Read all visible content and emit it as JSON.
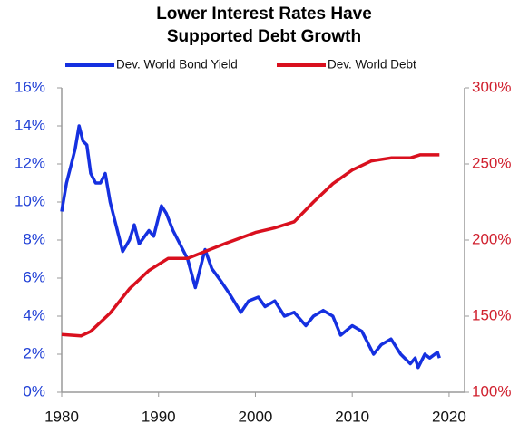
{
  "chart_data": {
    "type": "line",
    "title": [
      "Lower Interest Rates Have",
      "Supported  Debt Growth"
    ],
    "xlim": [
      1980,
      2021.6
    ],
    "xticks": [
      1980,
      1990,
      2000,
      2010,
      2020
    ],
    "ylim": [
      0,
      16
    ],
    "yticks": [
      {
        "value": 0,
        "label": "0%"
      },
      {
        "value": 2,
        "label": "2%"
      },
      {
        "value": 4,
        "label": "4%"
      },
      {
        "value": 6,
        "label": "6%"
      },
      {
        "value": 8,
        "label": "8%"
      },
      {
        "value": 10,
        "label": "10%"
      },
      {
        "value": 12,
        "label": "12%"
      },
      {
        "value": 14,
        "label": "14%"
      },
      {
        "value": 16,
        "label": "16%"
      }
    ],
    "y2lim": [
      100,
      300
    ],
    "y2ticks": [
      {
        "value": 100,
        "label": "100%"
      },
      {
        "value": 150,
        "label": "150%"
      },
      {
        "value": 200,
        "label": "200%"
      },
      {
        "value": 250,
        "label": "250%"
      },
      {
        "value": 300,
        "label": "300%"
      }
    ],
    "yaxis_color": "#1f3fd6",
    "y2axis_color": "#d0202e",
    "series": [
      {
        "name": "Dev. World Bond Yield",
        "color": "#1530e0",
        "axis": "y",
        "x": [
          1980,
          1980.5,
          1981,
          1981.4,
          1981.8,
          1982.2,
          1982.6,
          1983,
          1983.5,
          1984,
          1984.5,
          1985,
          1985.5,
          1986.3,
          1987,
          1987.5,
          1988,
          1989,
          1989.5,
          1990.3,
          1990.8,
          1991.5,
          1992,
          1993,
          1993.8,
          1994.3,
          1994.8,
          1995.5,
          1996.5,
          1997.3,
          1998.5,
          1999.3,
          2000.3,
          2001,
          2002,
          2003,
          2004,
          2005.2,
          2006,
          2007,
          2008,
          2008.8,
          2010,
          2011,
          2012.2,
          2013,
          2014,
          2015,
          2016,
          2016.5,
          2016.8,
          2017.5,
          2018,
          2018.8,
          2019
        ],
        "values": [
          9.5,
          11,
          12,
          12.8,
          14,
          13.2,
          13,
          11.5,
          11,
          11,
          11.5,
          10,
          9,
          7.4,
          8,
          8.8,
          7.8,
          8.5,
          8.2,
          9.8,
          9.4,
          8.5,
          8,
          7,
          5.5,
          6.5,
          7.5,
          6.5,
          5.8,
          5.2,
          4.2,
          4.8,
          5,
          4.5,
          4.8,
          4,
          4.2,
          3.5,
          4,
          4.3,
          4,
          3,
          3.5,
          3.2,
          2,
          2.5,
          2.8,
          2,
          1.5,
          1.8,
          1.3,
          2,
          1.8,
          2.1,
          1.8
        ]
      },
      {
        "name": "Dev. World Debt",
        "color": "#d9101e",
        "axis": "y2",
        "x": [
          1980,
          1982,
          1983,
          1985,
          1987,
          1989,
          1991,
          1993,
          1995,
          1997,
          2000,
          2002,
          2004,
          2006,
          2008,
          2010,
          2012,
          2014,
          2016,
          2017,
          2019
        ],
        "values": [
          138,
          137,
          140,
          152,
          168,
          180,
          188,
          188,
          193,
          198,
          205,
          208,
          212,
          225,
          237,
          246,
          252,
          254,
          254,
          256,
          256
        ]
      }
    ]
  }
}
